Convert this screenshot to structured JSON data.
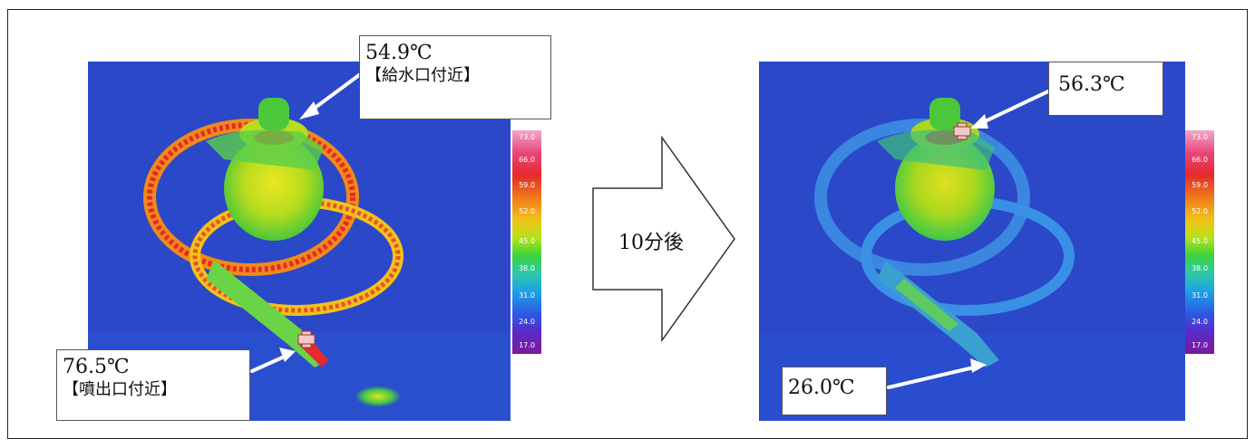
{
  "images": {
    "before_icon": "thermal-image-before",
    "after_icon": "thermal-image-after"
  },
  "scale": {
    "ticks": [
      "73.0",
      "66.0",
      "59.0",
      "52.0",
      "45.0",
      "38.0",
      "31.0",
      "24.0",
      "17.0"
    ]
  },
  "callouts": {
    "feed_temp": "54.9℃",
    "feed_note": "【給水口付近】",
    "nozzle_temp": "76.5℃",
    "nozzle_note": "【噴出口付近】",
    "after_top_temp": "56.3℃",
    "after_bottom_temp": "26.0℃"
  },
  "transition": {
    "label": "10分後"
  },
  "colors": {
    "background_blue": "#2a48c8",
    "hot_red": "#e42a2a",
    "warm_yellow": "#c8e020",
    "cool_blue": "#3a86e0"
  }
}
